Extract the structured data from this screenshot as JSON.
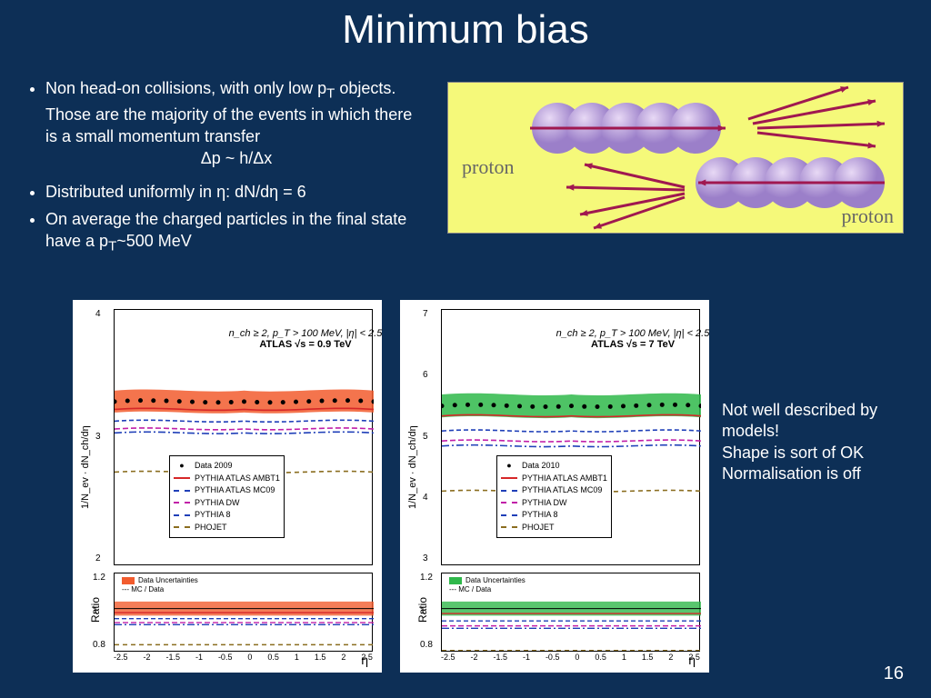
{
  "title": "Minimum bias",
  "bullets_group1": [
    "Non head-on collisions, with only low p<sub>T</sub> objects. Those are the majority of the events in which there is a small momentum transfer<br><span style='display:block;text-align:center'>Δp ~ h/Δx</span>"
  ],
  "bullets_group2": [
    "Distributed uniformly in η: dN/dη = 6",
    "On average the charged particles in the final state have a p<sub>T</sub>~500 MeV"
  ],
  "diagram": {
    "label1": "proton",
    "label2": "proton",
    "sphere_color": "#9b7fc9",
    "sphere_light": "#e8d9f5",
    "arrow_color": "#a01850",
    "bg": "#f5f97a"
  },
  "sidenote": "Not well described by models!\nShape is sort of OK\nNormalisation is off",
  "pagenum": "16",
  "chart_common": {
    "type": "line+scatter with ratio subplot",
    "ylabel_main": "1/N_ev · dN_ch/dη",
    "ylabel_ratio": "Ratio",
    "xlabel": "η",
    "xlim": [
      -2.5,
      2.5
    ],
    "xticks": [
      -2.5,
      -2,
      -1.5,
      -1,
      -0.5,
      0,
      0.5,
      1,
      1.5,
      2,
      2.5
    ],
    "ratio_ylim": [
      0.7,
      1.25
    ],
    "ratio_yticks": [
      0.8,
      1,
      1.2
    ],
    "background": "#ffffff",
    "grid": false,
    "annotation_line1": "n_ch ≥ 2, p_T > 100 MeV, |η| < 2.5"
  },
  "chart1": {
    "annotation_line2": "ATLAS √s = 0.9 TeV",
    "main_ylim": [
      1.4,
      4.6
    ],
    "main_yticks": [
      2,
      3,
      4
    ],
    "data_band_color": "#f25c2e",
    "legend": [
      {
        "label": "Data 2009",
        "style": "marker",
        "color": "#000000"
      },
      {
        "label": "PYTHIA ATLAS AMBT1",
        "style": "solid",
        "color": "#d62728"
      },
      {
        "label": "PYTHIA ATLAS MC09",
        "style": "dashed",
        "color": "#1f3fb8"
      },
      {
        "label": "PYTHIA DW",
        "style": "dashed",
        "color": "#c11fa8"
      },
      {
        "label": "PYTHIA 8",
        "style": "dash-dot",
        "color": "#1f3fb8"
      },
      {
        "label": "PHOJET",
        "style": "dashed",
        "color": "#8a6d1f"
      }
    ],
    "data_level": 3.5,
    "models": {
      "AMBT1": {
        "level": 3.4,
        "color": "#d62728",
        "dash": "none"
      },
      "MC09": {
        "level": 3.25,
        "color": "#1f3fb8",
        "dash": "5,3"
      },
      "DW": {
        "level": 3.15,
        "color": "#c11fa8",
        "dash": "6,3"
      },
      "P8": {
        "level": 3.1,
        "color": "#1f3fb8",
        "dash": "8,3,2,3"
      },
      "PHOJET": {
        "level": 2.6,
        "color": "#8a6d1f",
        "dash": "5,4"
      }
    },
    "ratio_legend": [
      "Data Uncertainties",
      "MC / Data"
    ]
  },
  "chart2": {
    "annotation_line2": "ATLAS √s = 7 TeV",
    "main_ylim": [
      2.5,
      7.5
    ],
    "main_yticks": [
      3,
      4,
      5,
      6,
      7
    ],
    "data_band_color": "#2fb84a",
    "legend": [
      {
        "label": "Data 2010",
        "style": "marker",
        "color": "#000000"
      },
      {
        "label": "PYTHIA ATLAS AMBT1",
        "style": "solid",
        "color": "#d62728"
      },
      {
        "label": "PYTHIA ATLAS MC09",
        "style": "dashed",
        "color": "#1f3fb8"
      },
      {
        "label": "PYTHIA DW",
        "style": "dashed",
        "color": "#c11fa8"
      },
      {
        "label": "PYTHIA 8",
        "style": "dash-dot",
        "color": "#1f3fb8"
      },
      {
        "label": "PHOJET",
        "style": "dashed",
        "color": "#8a6d1f"
      }
    ],
    "data_level": 5.7,
    "models": {
      "AMBT1": {
        "level": 5.5,
        "color": "#d62728",
        "dash": "none"
      },
      "MC09": {
        "level": 5.2,
        "color": "#1f3fb8",
        "dash": "5,3"
      },
      "DW": {
        "level": 5.0,
        "color": "#c11fa8",
        "dash": "6,3"
      },
      "P8": {
        "level": 4.9,
        "color": "#1f3fb8",
        "dash": "8,3,2,3"
      },
      "PHOJET": {
        "level": 4.0,
        "color": "#8a6d1f",
        "dash": "5,4"
      }
    },
    "ratio_legend": [
      "Data Uncertainties",
      "MC / Data"
    ]
  }
}
